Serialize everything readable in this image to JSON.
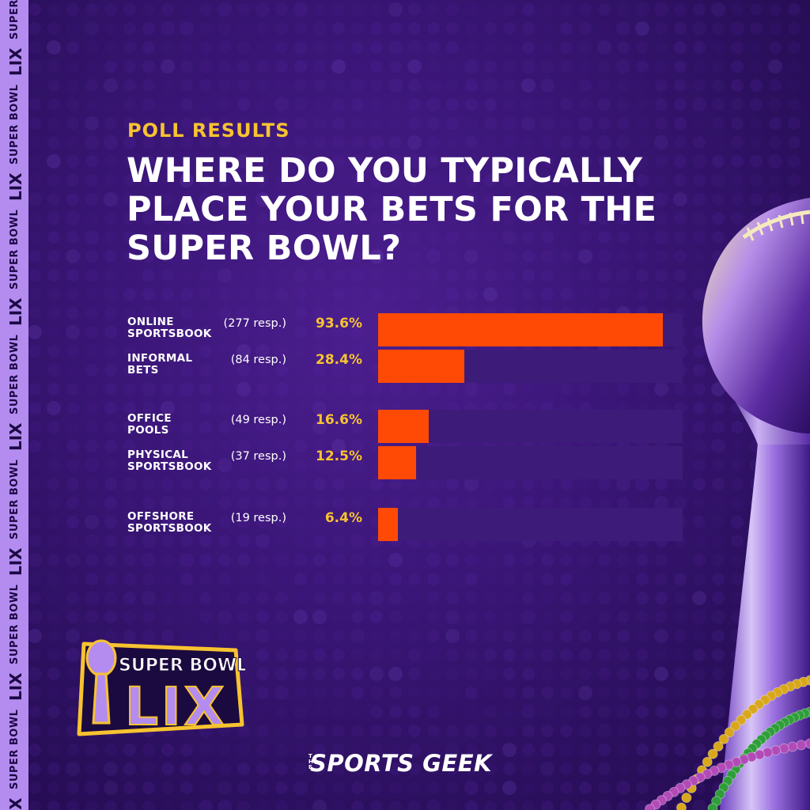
{
  "side_strip": {
    "text": "SUPER BOWL",
    "mark": "LIX"
  },
  "header": {
    "eyebrow": "POLL RESULTS",
    "title": "WHERE DO YOU TYPICALLY PLACE YOUR BETS FOR THE SUPER BOWL?"
  },
  "chart_data": {
    "type": "bar",
    "orientation": "horizontal",
    "title": "WHERE DO YOU TYPICALLY PLACE YOUR BETS FOR THE SUPER BOWL?",
    "categories": [
      "ONLINE SPORTSBOOK",
      "INFORMAL BETS",
      "OFFICE POOLS",
      "PHYSICAL SPORTSBOOK",
      "OFFSHORE SPORTSBOOK"
    ],
    "category_lines": [
      [
        "ONLINE",
        "SPORTSBOOK"
      ],
      [
        "INFORMAL",
        "BETS"
      ],
      [
        "OFFICE",
        "POOLS"
      ],
      [
        "PHYSICAL",
        "SPORTSBOOK"
      ],
      [
        "OFFSHORE",
        "SPORTSBOOK"
      ]
    ],
    "responses": [
      277,
      84,
      49,
      37,
      19
    ],
    "response_labels": [
      "(277 resp.)",
      "(84 resp.)",
      "(49 resp.)",
      "(37 resp.)",
      "(19 resp.)"
    ],
    "values": [
      93.6,
      28.4,
      16.6,
      12.5,
      6.4
    ],
    "value_labels": [
      "93.6%",
      "28.4%",
      "16.6%",
      "12.5%",
      "6.4%"
    ],
    "xlim": [
      0,
      100
    ],
    "grid": false,
    "colors": {
      "fill": "#ff4a06",
      "track": "#3c1c78",
      "value_text": "#f7c330"
    }
  },
  "logo": {
    "line1": "SUPER BOWL",
    "line2": "LIX"
  },
  "brand": {
    "prefix": "THE",
    "name": "SPORTS GEEK"
  },
  "colors": {
    "background": "#3a1677",
    "accent_yellow": "#f7c330",
    "accent_orange": "#ff4a06",
    "strip": "#b48cf0"
  }
}
